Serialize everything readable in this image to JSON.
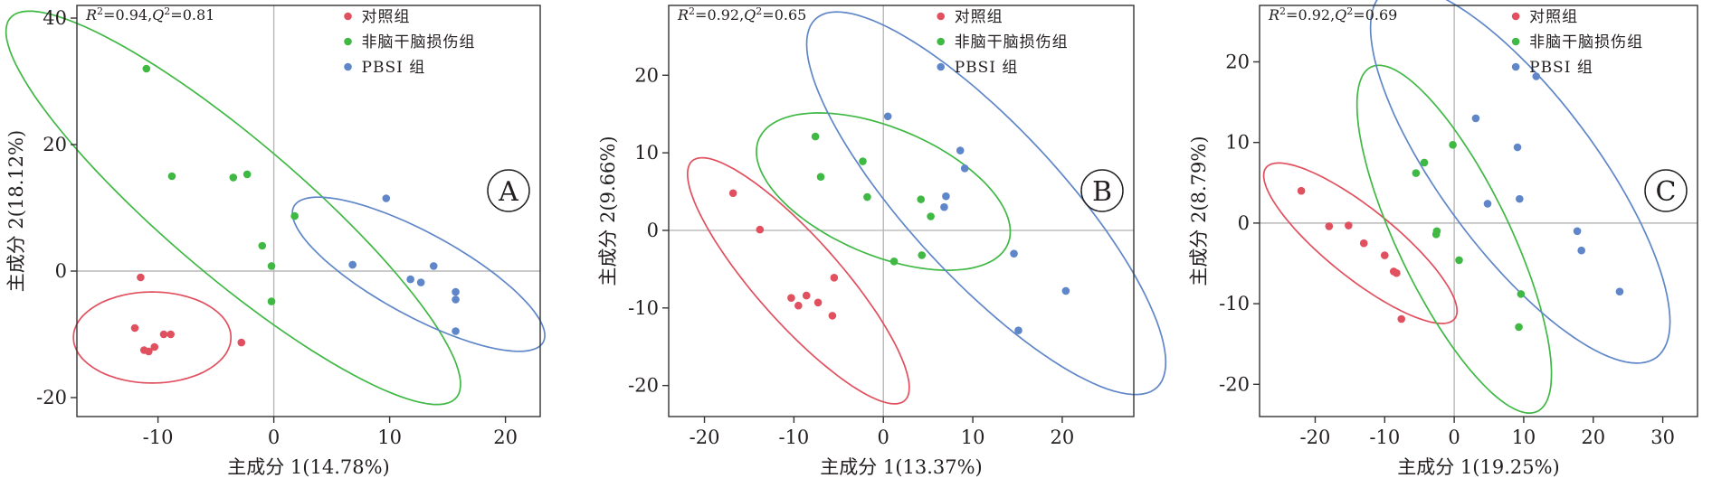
{
  "chart_data": [
    {
      "type": "scatter",
      "panel_label": "A",
      "stat_r2": "0.94",
      "stat_q2": "0.81",
      "xlabel": "主成分 1(14.78%)",
      "ylabel": "主成分 2(18.12%)",
      "xlim": [
        -17,
        23
      ],
      "ylim": [
        -23,
        42
      ],
      "xticks": [
        -10,
        0,
        10,
        20
      ],
      "yticks": [
        -20,
        0,
        20,
        40
      ],
      "legend_position": "top-right",
      "grid": false,
      "series": [
        {
          "name": "对照组",
          "color": "#e0505e",
          "points": [
            [
              -11.5,
              -1
            ],
            [
              -12,
              -9
            ],
            [
              -11.2,
              -12.5
            ],
            [
              -10.8,
              -12.7
            ],
            [
              -10.3,
              -12
            ],
            [
              -9.5,
              -10
            ],
            [
              -8.9,
              -10
            ],
            [
              -2.8,
              -11.3
            ]
          ],
          "ellipse": {
            "cx": -10.5,
            "cy": -10.5,
            "rx": 6.8,
            "ry": 7.2,
            "angle": 0
          }
        },
        {
          "name": "非脑干脑损伤组",
          "color": "#3fb844",
          "points": [
            [
              -11,
              32
            ],
            [
              -8.8,
              15
            ],
            [
              -3.5,
              14.8
            ],
            [
              -2.3,
              15.3
            ],
            [
              1.8,
              8.7
            ],
            [
              -1,
              4
            ],
            [
              -0.2,
              0.8
            ],
            [
              -0.2,
              -4.8
            ],
            [
              6.8,
              1
            ]
          ],
          "ellipse": {
            "cx": -3.5,
            "cy": 10,
            "rx": 36,
            "ry": 7.5,
            "angle": -59
          }
        },
        {
          "name": "PBSI 组",
          "color": "#5f86c8",
          "points": [
            [
              9.7,
              11.5
            ],
            [
              13.8,
              0.8
            ],
            [
              11.8,
              -1.3
            ],
            [
              12.7,
              -1.8
            ],
            [
              15.7,
              -3.3
            ],
            [
              15.7,
              -4.5
            ],
            [
              15.7,
              -9.5
            ],
            [
              6.8,
              1
            ]
          ],
          "ellipse": {
            "cx": 12.5,
            "cy": -0.5,
            "rx": 15.5,
            "ry": 5.2,
            "angle": -49
          }
        }
      ]
    },
    {
      "type": "scatter",
      "panel_label": "B",
      "stat_r2": "0.92",
      "stat_q2": "0.65",
      "xlabel": "主成分 1(13.37%)",
      "ylabel": "主成分 2(9.66%)",
      "xlim": [
        -24,
        28
      ],
      "ylim": [
        -24,
        29
      ],
      "xticks": [
        -20,
        -10,
        0,
        10,
        20
      ],
      "yticks": [
        -20,
        -10,
        0,
        10,
        20
      ],
      "legend_position": "top-right",
      "grid": false,
      "series": [
        {
          "name": "对照组",
          "color": "#e0505e",
          "points": [
            [
              -16.8,
              4.8
            ],
            [
              -13.8,
              0.1
            ],
            [
              -10.3,
              -8.7
            ],
            [
              -9.5,
              -9.7
            ],
            [
              -8.6,
              -8.4
            ],
            [
              -7.3,
              -9.3
            ],
            [
              -5.5,
              -6.1
            ],
            [
              -5.7,
              -11
            ]
          ],
          "ellipse": {
            "cx": -9.5,
            "cy": -6.5,
            "rx": 19.5,
            "ry": 5,
            "angle": -53
          }
        },
        {
          "name": "非脑干脑损伤组",
          "color": "#3fb844",
          "points": [
            [
              -7.6,
              12.1
            ],
            [
              -7,
              6.9
            ],
            [
              -2.3,
              8.9
            ],
            [
              -1.8,
              4.3
            ],
            [
              1.2,
              -4
            ],
            [
              4.2,
              4
            ],
            [
              5.3,
              1.8
            ],
            [
              4.3,
              -3.2
            ]
          ],
          "ellipse": {
            "cx": 0,
            "cy": 5,
            "rx": 15.5,
            "ry": 8,
            "angle": -28
          }
        },
        {
          "name": "PBSI 组",
          "color": "#5f86c8",
          "points": [
            [
              0.5,
              14.7
            ],
            [
              8.6,
              10.3
            ],
            [
              9.1,
              8
            ],
            [
              7,
              4.4
            ],
            [
              6.8,
              3
            ],
            [
              14.6,
              -3
            ],
            [
              20.4,
              -7.8
            ],
            [
              15.1,
              -12.9
            ]
          ],
          "ellipse": {
            "cx": 11.5,
            "cy": 3.5,
            "rx": 30.5,
            "ry": 9,
            "angle": -52
          }
        }
      ]
    },
    {
      "type": "scatter",
      "panel_label": "C",
      "stat_r2": "0.92",
      "stat_q2": "0.69",
      "xlabel": "主成分 1(19.25%)",
      "ylabel": "主成分 2(8.79%)",
      "xlim": [
        -28,
        35
      ],
      "ylim": [
        -24,
        27
      ],
      "xticks": [
        -20,
        -10,
        0,
        10,
        20,
        30
      ],
      "yticks": [
        -20,
        -10,
        0,
        10,
        20
      ],
      "legend_position": "top-right",
      "grid": false,
      "series": [
        {
          "name": "对照组",
          "color": "#e0505e",
          "points": [
            [
              -22,
              4
            ],
            [
              -18,
              -0.4
            ],
            [
              -15.2,
              -0.3
            ],
            [
              -13,
              -2.5
            ],
            [
              -10,
              -4
            ],
            [
              -8.7,
              -6
            ],
            [
              -8.3,
              -6.2
            ],
            [
              -7.6,
              -11.9
            ]
          ],
          "ellipse": {
            "cx": -13.5,
            "cy": -2.5,
            "rx": 16.5,
            "ry": 4.5,
            "angle": -34
          }
        },
        {
          "name": "非脑干脑损伤组",
          "color": "#3fb844",
          "points": [
            [
              -0.2,
              9.7
            ],
            [
              -4.3,
              7.5
            ],
            [
              -5.5,
              6.2
            ],
            [
              -2.5,
              -1
            ],
            [
              -2.6,
              -1.4
            ],
            [
              0.7,
              -4.6
            ],
            [
              9.6,
              -8.8
            ],
            [
              9.3,
              -12.9
            ]
          ],
          "ellipse": {
            "cx": 0,
            "cy": -2,
            "rx": 24.5,
            "ry": 7.8,
            "angle": -60
          }
        },
        {
          "name": "PBSI 组",
          "color": "#5f86c8",
          "points": [
            [
              3.1,
              13
            ],
            [
              11.8,
              18.2
            ],
            [
              9.1,
              9.4
            ],
            [
              9.4,
              3
            ],
            [
              4.8,
              2.4
            ],
            [
              17.7,
              -1
            ],
            [
              18.3,
              -3.4
            ],
            [
              23.8,
              -8.5
            ]
          ],
          "ellipse": {
            "cx": 9.5,
            "cy": 6,
            "rx": 30,
            "ry": 10.5,
            "angle": -48
          }
        }
      ]
    }
  ]
}
